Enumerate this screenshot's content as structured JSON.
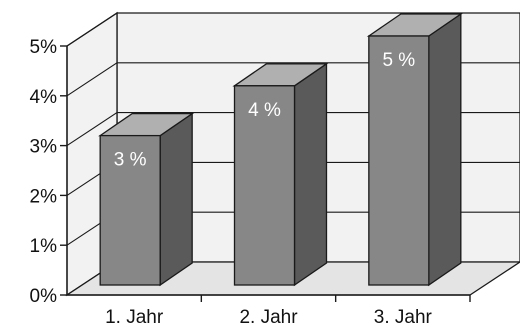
{
  "chart_data": {
    "type": "bar",
    "categories": [
      "1. Jahr",
      "2. Jahr",
      "3. Jahr"
    ],
    "values": [
      3,
      4,
      5
    ],
    "data_labels": [
      "3 %",
      "4 %",
      "5 %"
    ],
    "ylim": [
      0,
      5
    ],
    "y_ticks": [
      {
        "value": 0,
        "label": "0%"
      },
      {
        "value": 1,
        "label": "1%"
      },
      {
        "value": 2,
        "label": "2%"
      },
      {
        "value": 3,
        "label": "3%"
      },
      {
        "value": 4,
        "label": "4%"
      },
      {
        "value": 5,
        "label": "5%"
      }
    ],
    "grid": true,
    "style": "3d",
    "colors": {
      "bar_front": "#878787",
      "bar_side": "#5a5a5a",
      "bar_top": "#b0b0b0",
      "wall": "#f2f2f2",
      "floor": "#e4e4e4",
      "line": "#1a1a1a",
      "data_label": "#ffffff"
    }
  }
}
